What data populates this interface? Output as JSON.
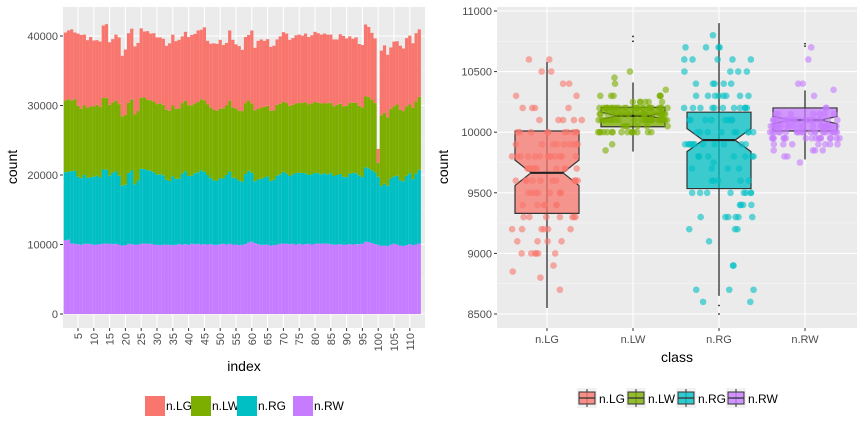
{
  "chart_data": [
    {
      "type": "bar",
      "stacked": true,
      "xlabel": "index",
      "ylabel": "count",
      "xlim": [
        0.5,
        113.5
      ],
      "ylim": [
        -1500,
        44000
      ],
      "x_ticks": [
        5,
        10,
        15,
        20,
        25,
        30,
        35,
        40,
        45,
        50,
        55,
        60,
        65,
        70,
        75,
        80,
        85,
        90,
        95,
        100,
        105,
        110
      ],
      "y_ticks": [
        0,
        10000,
        20000,
        30000,
        40000
      ],
      "grid": true,
      "legend_position": "bottom",
      "stack_order": [
        "n.RW",
        "n.RG",
        "n.LW",
        "n.LG"
      ],
      "series": [
        {
          "name": "n.LG",
          "color": "#F8766D",
          "values": [
            9800,
            9900,
            10200,
            9600,
            10400,
            10600,
            10200,
            9700,
            10000,
            9500,
            9300,
            9400,
            10400,
            10600,
            9000,
            9100,
            9500,
            9600,
            8700,
            9400,
            10000,
            10200,
            9800,
            9800,
            10000,
            9500,
            9900,
            9600,
            9800,
            9600,
            9500,
            9500,
            9200,
            9700,
            10200,
            9700,
            9900,
            9600,
            9900,
            9800,
            10100,
            10000,
            10300,
            10000,
            10500,
            9100,
            9200,
            9600,
            9600,
            9900,
            9100,
            9000,
            10100,
            9700,
            9200,
            9300,
            8800,
            9500,
            9400,
            10500,
            9000,
            9800,
            9800,
            9500,
            9600,
            9200,
            9300,
            9400,
            9700,
            10000,
            10000,
            9500,
            9600,
            9800,
            9800,
            9700,
            9900,
            9700,
            9800,
            10100,
            10000,
            9900,
            10000,
            9900,
            9800,
            9600,
            9400,
            10000,
            10100,
            9700,
            9600,
            9200,
            9400,
            8900,
            9000,
            10300,
            10100,
            9600,
            9300,
            2000,
            9300,
            9700,
            9000,
            8850,
            9300,
            9100,
            9200,
            9000,
            9800,
            9900,
            9300,
            9800,
            9700
          ]
        },
        {
          "name": "n.LW",
          "color": "#7CAE00",
          "values": [
            10300,
            10450,
            10200,
            10300,
            10200,
            10000,
            10000,
            10100,
            10200,
            10100,
            10200,
            10150,
            10300,
            10350,
            10200,
            10100,
            10200,
            10300,
            10000,
            10050,
            10100,
            10200,
            10050,
            10000,
            10200,
            10300,
            10100,
            10150,
            10200,
            10150,
            10200,
            10150,
            10100,
            10100,
            10200,
            10100,
            10100,
            10150,
            10150,
            10200,
            10150,
            10050,
            10100,
            10200,
            10300,
            10200,
            10150,
            10100,
            10100,
            10000,
            10100,
            10000,
            10200,
            10150,
            10100,
            10050,
            10150,
            10200,
            10150,
            10000,
            10200,
            10150,
            10250,
            10150,
            10150,
            10100,
            10000,
            10200,
            10150,
            10100,
            10150,
            10100,
            10000,
            10000,
            10100,
            10050,
            10200,
            10150,
            10200,
            10200,
            10150,
            10200,
            10100,
            10200,
            10150,
            10050,
            10100,
            10100,
            10150,
            10250,
            10200,
            10100,
            10150,
            10000,
            10000,
            10250,
            10250,
            10150,
            10000,
            2000,
            10200,
            10200,
            9850,
            10000,
            10100,
            10250,
            10150,
            10100,
            10000,
            9900,
            10250,
            10400,
            10500
          ]
        },
        {
          "name": "n.RG",
          "color": "#00BFC4",
          "values": [
            9800,
            9750,
            10400,
            10500,
            9700,
            9600,
            9900,
            9500,
            9600,
            9800,
            9900,
            9600,
            10700,
            10600,
            9800,
            10300,
            10400,
            9900,
            8600,
            8700,
            10200,
            10600,
            8700,
            9200,
            10800,
            10700,
            10600,
            10500,
            10400,
            10100,
            10200,
            10000,
            9300,
            9200,
            9900,
            9500,
            9400,
            10200,
            10500,
            9900,
            9800,
            10200,
            10300,
            10700,
            10400,
            10000,
            9500,
            9300,
            9200,
            9500,
            9400,
            10000,
            10400,
            9600,
            9500,
            9300,
            9100,
            10100,
            10300,
            9900,
            8900,
            9300,
            9500,
            9700,
            9800,
            9300,
            9400,
            9900,
            10000,
            10300,
            10100,
            9800,
            10000,
            10300,
            10200,
            10300,
            10200,
            9900,
            10100,
            10200,
            10100,
            10000,
            10100,
            10000,
            10200,
            9900,
            10000,
            10100,
            9800,
            9700,
            10100,
            10300,
            10200,
            9900,
            9600,
            10700,
            10600,
            10500,
            10300,
            9800,
            8600,
            8900,
            8700,
            9500,
            9700,
            9900,
            9400,
            9300,
            10000,
            10200,
            9500,
            10200,
            10600
          ]
        },
        {
          "name": "n.RW",
          "color": "#C77CFF",
          "values": [
            10600,
            10700,
            10150,
            10100,
            10050,
            9950,
            10100,
            10100,
            10050,
            9950,
            10000,
            10050,
            10100,
            10150,
            10100,
            10050,
            10100,
            10000,
            9850,
            9900,
            10100,
            10050,
            9950,
            10000,
            10100,
            10150,
            10100,
            10100,
            10000,
            9950,
            9900,
            9950,
            10000,
            9950,
            9900,
            9950,
            10050,
            10000,
            10050,
            9950,
            10100,
            10050,
            10100,
            10000,
            10050,
            10000,
            10050,
            9950,
            9950,
            10050,
            10100,
            10000,
            10100,
            10000,
            10000,
            9900,
            9950,
            10050,
            10300,
            10400,
            10200,
            10050,
            9950,
            9950,
            10000,
            9850,
            9900,
            10000,
            10100,
            10150,
            10100,
            10050,
            10100,
            10000,
            10100,
            10000,
            10050,
            10100,
            10000,
            10100,
            10150,
            10100,
            10150,
            10100,
            10050,
            9950,
            10000,
            10050,
            9950,
            10000,
            10050,
            10000,
            10050,
            10050,
            10100,
            10400,
            10350,
            10200,
            10050,
            9950,
            9800,
            9850,
            9750,
            10000,
            10100,
            10000,
            9850,
            9800,
            9900,
            10050,
            9900,
            10000,
            10150
          ]
        }
      ]
    },
    {
      "type": "boxplot",
      "notched": true,
      "jitter_points": true,
      "xlabel": "class",
      "ylabel": "count",
      "ylim": [
        8400,
        11050
      ],
      "y_ticks": [
        8500,
        9000,
        9500,
        10000,
        10500,
        11000
      ],
      "grid": true,
      "legend_position": "bottom",
      "categories": [
        "n.LG",
        "n.LW",
        "n.RG",
        "n.RW"
      ],
      "boxes": [
        {
          "name": "n.LG",
          "color": "#F8766D",
          "whisker_low": 8550,
          "q1": 9330,
          "median": 9665,
          "q3": 10010,
          "whisker_high": 10580,
          "notch_low": 9560,
          "notch_high": 9770,
          "outliers": []
        },
        {
          "name": "n.LW",
          "color": "#7CAE00",
          "whisker_low": 9840,
          "q1": 10045,
          "median": 10135,
          "q3": 10205,
          "whisker_high": 10410,
          "notch_low": 10105,
          "notch_high": 10165,
          "outliers": [
            10790,
            10750
          ]
        },
        {
          "name": "n.RG",
          "color": "#00BFC4",
          "whisker_low": 8650,
          "q1": 9535,
          "median": 9935,
          "q3": 10165,
          "whisker_high": 10900,
          "notch_low": 9840,
          "notch_high": 10030,
          "outliers": [
            8570,
            8500
          ]
        },
        {
          "name": "n.RW",
          "color": "#C77CFF",
          "whisker_low": 9775,
          "q1": 10010,
          "median": 10100,
          "q3": 10200,
          "whisker_high": 10345,
          "notch_low": 10070,
          "notch_high": 10130,
          "outliers": [
            10730,
            10710
          ]
        }
      ]
    }
  ]
}
